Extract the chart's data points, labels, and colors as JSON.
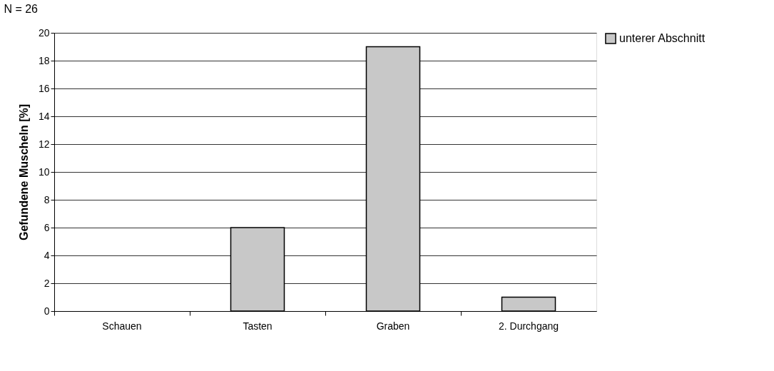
{
  "chart_data": {
    "type": "bar",
    "title": "N = 26",
    "ylabel": "Gefundene Muscheln [%]",
    "categories": [
      "Schauen",
      "Tasten",
      "Graben",
      "2. Durchgang"
    ],
    "series": [
      {
        "name": "unterer Abschnitt",
        "color": "#c8c8c8",
        "values": [
          0,
          6,
          19,
          1
        ]
      }
    ],
    "ylim": [
      0,
      20
    ],
    "yticks": [
      0,
      2,
      4,
      6,
      8,
      10,
      12,
      14,
      16,
      18,
      20
    ],
    "grid": "y",
    "legend": "right"
  }
}
